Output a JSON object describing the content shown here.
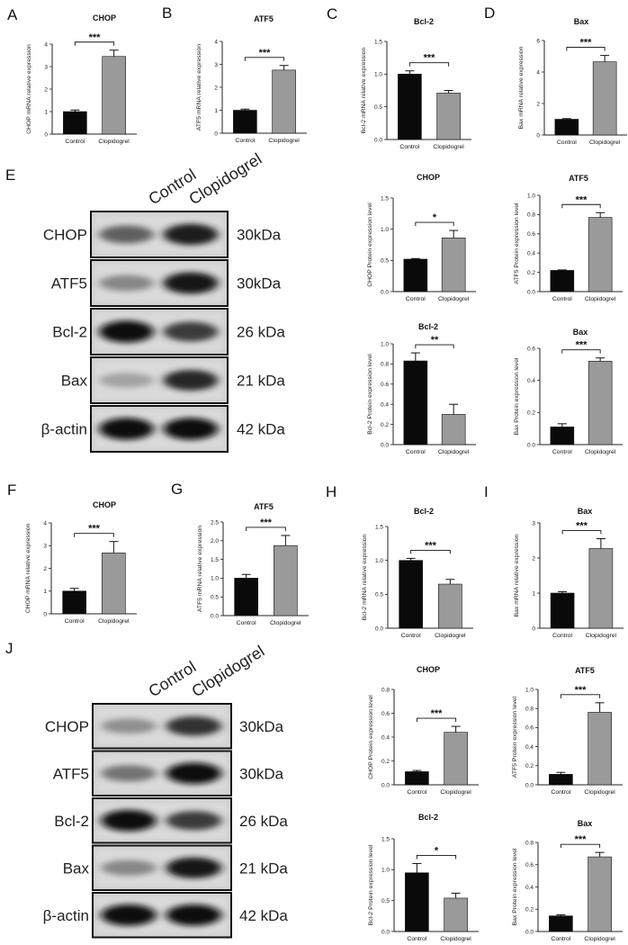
{
  "colors": {
    "control": "#0a0a0a",
    "treated": "#9a9a9a",
    "axis": "#222222",
    "error": "#111111"
  },
  "chart_data": [
    {
      "id": "A",
      "type": "bar",
      "letter": "A",
      "title": "CHOP",
      "categories": [
        "Control",
        "Clopidogrel"
      ],
      "values": [
        1.0,
        3.45
      ],
      "errors": [
        0.07,
        0.28
      ],
      "ylabel": "CHOP mRNA relative expression",
      "ylim": [
        0,
        4
      ],
      "yticks": [
        "0",
        "1",
        "2",
        "3",
        "4"
      ],
      "significance": "***",
      "grid": false
    },
    {
      "id": "B",
      "type": "bar",
      "letter": "B",
      "title": "ATF5",
      "categories": [
        "Control",
        "Clopidogrel"
      ],
      "values": [
        1.0,
        2.75
      ],
      "errors": [
        0.05,
        0.2
      ],
      "ylabel": "ATF5 mRNA relative expression",
      "ylim": [
        0,
        4
      ],
      "yticks": [
        "0",
        "1",
        "2",
        "3",
        "4"
      ],
      "significance": "***",
      "grid": false
    },
    {
      "id": "C",
      "type": "bar",
      "letter": "C",
      "title": "Bcl-2",
      "categories": [
        "Control",
        "Clopidogrel"
      ],
      "values": [
        1.0,
        0.71
      ],
      "errors": [
        0.05,
        0.04
      ],
      "ylabel": "Bcl-2 mRNA relative expression",
      "ylim": [
        0,
        1.5
      ],
      "yticks": [
        "0.0",
        "0.5",
        "1.0",
        "1.5"
      ],
      "significance": "***",
      "grid": false
    },
    {
      "id": "D",
      "type": "bar",
      "letter": "D",
      "title": "Bax",
      "categories": [
        "Control",
        "Clopidogrel"
      ],
      "values": [
        1.0,
        4.65
      ],
      "errors": [
        0.04,
        0.4
      ],
      "ylabel": "Bax mRNA relative expression",
      "ylim": [
        0,
        6
      ],
      "yticks": [
        "0",
        "2",
        "4",
        "6"
      ],
      "significance": "***",
      "grid": false
    },
    {
      "id": "E1",
      "type": "bar",
      "letter": "",
      "title": "CHOP",
      "categories": [
        "Control",
        "Clopidogrel"
      ],
      "values": [
        0.52,
        0.86
      ],
      "errors": [
        0.01,
        0.12
      ],
      "ylabel": "CHOP Protein expression level",
      "ylim": [
        0,
        1.5
      ],
      "yticks": [
        "0.0",
        "0.5",
        "1.0",
        "1.5"
      ],
      "significance": "*",
      "grid": false
    },
    {
      "id": "E2",
      "type": "bar",
      "letter": "",
      "title": "ATF5",
      "categories": [
        "Control",
        "Clopidogrel"
      ],
      "values": [
        0.22,
        0.77
      ],
      "errors": [
        0.005,
        0.05
      ],
      "ylabel": "ATF5 Protein expression level",
      "ylim": [
        0,
        1.0
      ],
      "yticks": [
        "0.0",
        "0.2",
        "0.4",
        "0.6",
        "0.8",
        "1.0"
      ],
      "significance": "***",
      "grid": false
    },
    {
      "id": "E3",
      "type": "bar",
      "letter": "",
      "title": "Bcl-2",
      "categories": [
        "Control",
        "Clopidogrel"
      ],
      "values": [
        0.83,
        0.3
      ],
      "errors": [
        0.08,
        0.1
      ],
      "ylabel": "Bcl-2 Protein expression level",
      "ylim": [
        0,
        1.0
      ],
      "yticks": [
        "0.0",
        "0.2",
        "0.4",
        "0.6",
        "0.8",
        "1.0"
      ],
      "significance": "**",
      "grid": false
    },
    {
      "id": "E4",
      "type": "bar",
      "letter": "",
      "title": "Bax",
      "categories": [
        "Control",
        "Clopidogrel"
      ],
      "values": [
        0.11,
        0.52
      ],
      "errors": [
        0.02,
        0.02
      ],
      "ylabel": "Bax Protein expression level",
      "ylim": [
        0,
        0.6
      ],
      "yticks": [
        "0.0",
        "0.2",
        "0.4",
        "0.6"
      ],
      "significance": "***",
      "grid": false
    },
    {
      "id": "F",
      "type": "bar",
      "letter": "F",
      "title": "CHOP",
      "categories": [
        "Control",
        "Clopidogrel"
      ],
      "values": [
        1.0,
        2.68
      ],
      "errors": [
        0.12,
        0.5
      ],
      "ylabel": "CHOP mRNA relative expression",
      "ylim": [
        0,
        4
      ],
      "yticks": [
        "0",
        "1",
        "2",
        "3",
        "4"
      ],
      "significance": "***",
      "grid": false
    },
    {
      "id": "G",
      "type": "bar",
      "letter": "G",
      "title": "ATF5",
      "categories": [
        "Control",
        "Clopidogrel"
      ],
      "values": [
        1.0,
        1.87
      ],
      "errors": [
        0.1,
        0.27
      ],
      "ylabel": "ATF5 mRNA relative expression",
      "ylim": [
        0,
        2.5
      ],
      "yticks": [
        "0.0",
        "0.5",
        "1.0",
        "1.5",
        "2.0",
        "2.5"
      ],
      "significance": "***",
      "grid": false
    },
    {
      "id": "H",
      "type": "bar",
      "letter": "H",
      "title": "Bcl-2",
      "categories": [
        "Control",
        "Clopidogrel"
      ],
      "values": [
        1.0,
        0.65
      ],
      "errors": [
        0.03,
        0.07
      ],
      "ylabel": "Bcl-2 mRNA relative expression",
      "ylim": [
        0,
        1.5
      ],
      "yticks": [
        "0.0",
        "0.5",
        "1.0",
        "1.5"
      ],
      "significance": "***",
      "grid": false
    },
    {
      "id": "I",
      "type": "bar",
      "letter": "I",
      "title": "Bax",
      "categories": [
        "Control",
        "Clopidogrel"
      ],
      "values": [
        1.0,
        2.27
      ],
      "errors": [
        0.04,
        0.28
      ],
      "ylabel": "Bax mRNA relative expression",
      "ylim": [
        0,
        3
      ],
      "yticks": [
        "0",
        "1",
        "2",
        "3"
      ],
      "significance": "***",
      "grid": false
    },
    {
      "id": "J1",
      "type": "bar",
      "letter": "",
      "title": "CHOP",
      "categories": [
        "Control",
        "Clopidogrel"
      ],
      "values": [
        0.11,
        0.44
      ],
      "errors": [
        0.01,
        0.05
      ],
      "ylabel": "CHOP Protein expression level",
      "ylim": [
        0,
        0.8
      ],
      "yticks": [
        "0.0",
        "0.2",
        "0.4",
        "0.6",
        "0.8"
      ],
      "significance": "***",
      "grid": false
    },
    {
      "id": "J2",
      "type": "bar",
      "letter": "",
      "title": "ATF5",
      "categories": [
        "Control",
        "Clopidogrel"
      ],
      "values": [
        0.11,
        0.76
      ],
      "errors": [
        0.02,
        0.1
      ],
      "ylabel": "ATF5 Protein expression level",
      "ylim": [
        0,
        1.0
      ],
      "yticks": [
        "0.0",
        "0.2",
        "0.4",
        "0.6",
        "0.8",
        "1.0"
      ],
      "significance": "***",
      "grid": false
    },
    {
      "id": "J3",
      "type": "bar",
      "letter": "",
      "title": "Bcl-2",
      "categories": [
        "Control",
        "Clopidogrel"
      ],
      "values": [
        0.95,
        0.54
      ],
      "errors": [
        0.15,
        0.08
      ],
      "ylabel": "Bcl-2 Protein expression level",
      "ylim": [
        0,
        1.5
      ],
      "yticks": [
        "0.0",
        "0.5",
        "1.0",
        "1.5"
      ],
      "significance": "*",
      "grid": false
    },
    {
      "id": "J4",
      "type": "bar",
      "letter": "",
      "title": "Bax",
      "categories": [
        "Control",
        "Clopidogrel"
      ],
      "values": [
        0.14,
        0.67
      ],
      "errors": [
        0.01,
        0.04
      ],
      "ylabel": "Bax Protein expression level",
      "ylim": [
        0,
        0.8
      ],
      "yticks": [
        "0.0",
        "0.2",
        "0.4",
        "0.6",
        "0.8"
      ],
      "significance": "***",
      "grid": false
    }
  ],
  "blots": [
    {
      "id": "E",
      "letter": "E",
      "lanes": [
        "Control",
        "Clopidogrel"
      ],
      "rows": [
        {
          "protein": "CHOP",
          "kda": "30kDa",
          "intensity": [
            0.55,
            0.9
          ]
        },
        {
          "protein": "ATF5",
          "kda": "30kDa",
          "intensity": [
            0.35,
            0.95
          ]
        },
        {
          "protein": "Bcl-2",
          "kda": "26 kDa",
          "intensity": [
            1.0,
            0.75
          ]
        },
        {
          "protein": "Bax",
          "kda": "21 kDa",
          "intensity": [
            0.2,
            0.85
          ]
        },
        {
          "protein": "β-actin",
          "kda": "42 kDa",
          "intensity": [
            1.0,
            1.0
          ]
        }
      ]
    },
    {
      "id": "J",
      "letter": "J",
      "lanes": [
        "Control",
        "Clopidogrel"
      ],
      "rows": [
        {
          "protein": "CHOP",
          "kda": "30kDa",
          "intensity": [
            0.3,
            0.8
          ]
        },
        {
          "protein": "ATF5",
          "kda": "30kDa",
          "intensity": [
            0.45,
            1.0
          ]
        },
        {
          "protein": "Bcl-2",
          "kda": "26 kDa",
          "intensity": [
            1.0,
            0.75
          ]
        },
        {
          "protein": "Bax",
          "kda": "21 kDa",
          "intensity": [
            0.35,
            0.95
          ]
        },
        {
          "protein": "β-actin",
          "kda": "42 kDa",
          "intensity": [
            1.0,
            1.0
          ]
        }
      ]
    }
  ]
}
